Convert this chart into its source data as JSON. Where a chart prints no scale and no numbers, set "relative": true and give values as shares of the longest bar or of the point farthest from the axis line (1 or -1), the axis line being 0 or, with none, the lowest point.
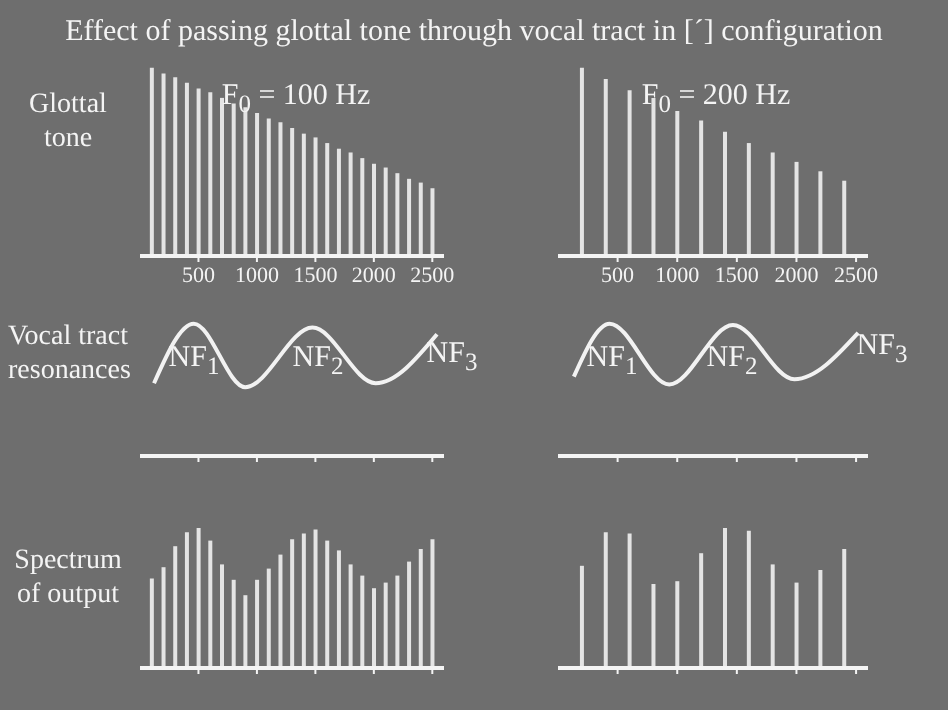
{
  "chart_data": [
    {
      "type": "bar",
      "title": "Effect of passing glottal tone through vocal tract in [´] configuration",
      "ylabel": "Glottal tone",
      "relative": true,
      "annotations": [
        "F$_{0}$ = 100 Hz"
      ],
      "xlim": [
        0,
        2600
      ],
      "xticks": [
        500,
        1000,
        1500,
        2000,
        2500
      ],
      "tick_labels": "x",
      "color": "#e4e4e4",
      "x": [
        100,
        200,
        300,
        400,
        500,
        600,
        700,
        800,
        900,
        1000,
        1100,
        1200,
        1300,
        1400,
        1500,
        1600,
        1700,
        1800,
        1900,
        2000,
        2100,
        2200,
        2300,
        2400,
        2500
      ],
      "values": [
        1,
        0.97,
        0.95,
        0.92,
        0.89,
        0.87,
        0.84,
        0.81,
        0.79,
        0.76,
        0.73,
        0.71,
        0.68,
        0.65,
        0.63,
        0.6,
        0.57,
        0.55,
        0.52,
        0.49,
        0.47,
        0.44,
        0.41,
        0.39,
        0.36
      ]
    },
    {
      "type": "bar",
      "relative": true,
      "annotations": [
        "F$_{0}$ = 200 Hz"
      ],
      "xlim": [
        0,
        2600
      ],
      "xticks": [
        500,
        1000,
        1500,
        2000,
        2500
      ],
      "tick_labels": "x",
      "color": "#e4e4e4",
      "x": [
        200,
        400,
        600,
        800,
        1000,
        1200,
        1400,
        1600,
        1800,
        2000,
        2200,
        2400
      ],
      "values": [
        1,
        0.94,
        0.88,
        0.84,
        0.77,
        0.72,
        0.66,
        0.6,
        0.55,
        0.5,
        0.45,
        0.4
      ]
    },
    {
      "type": "line",
      "ylabel": "Vocal tract resonances",
      "relative": true,
      "annotations": [
        "NF$_{1}$",
        "NF$_{2}$",
        "NF$_{3}$"
      ],
      "xlim": [
        0,
        2600
      ],
      "xticks": [
        500,
        1000,
        1500,
        2000,
        2500
      ],
      "tick_labels": false,
      "color": "#f2f2f2",
      "x": [
        120,
        460,
        900,
        1475,
        2015,
        2540
      ],
      "values": [
        0.55,
        1,
        0.52,
        0.97,
        0.55,
        0.92
      ]
    },
    {
      "type": "line",
      "relative": true,
      "annotations": [
        "NF$_{1}$",
        "NF$_{2}$",
        "NF$_{3}$"
      ],
      "xlim": [
        0,
        2600
      ],
      "xticks": [
        500,
        1000,
        1500,
        2000,
        2500
      ],
      "tick_labels": false,
      "color": "#f2f2f2",
      "x": [
        133,
        433,
        933,
        1467,
        1983,
        2517
      ],
      "values": [
        0.6,
        1,
        0.54,
        0.99,
        0.58,
        0.93
      ]
    },
    {
      "type": "bar",
      "ylabel": "Spectrum of output",
      "relative": true,
      "xlim": [
        0,
        2600
      ],
      "xticks": [
        500,
        1000,
        1500,
        2000,
        2500
      ],
      "tick_labels": false,
      "color": "#e4e4e4",
      "x": [
        100,
        200,
        300,
        400,
        500,
        600,
        700,
        800,
        900,
        1000,
        1100,
        1200,
        1300,
        1400,
        1500,
        1600,
        1700,
        1800,
        1900,
        2000,
        2100,
        2200,
        2300,
        2400,
        2500
      ],
      "values": [
        0.64,
        0.72,
        0.87,
        0.97,
        1,
        0.91,
        0.74,
        0.63,
        0.52,
        0.63,
        0.71,
        0.81,
        0.92,
        0.96,
        0.99,
        0.91,
        0.84,
        0.74,
        0.66,
        0.57,
        0.61,
        0.66,
        0.76,
        0.85,
        0.92
      ]
    },
    {
      "type": "bar",
      "relative": true,
      "xlim": [
        0,
        2600
      ],
      "xticks": [
        500,
        1000,
        1500,
        2000,
        2500
      ],
      "tick_labels": false,
      "color": "#e4e4e4",
      "x": [
        200,
        400,
        600,
        800,
        1000,
        1200,
        1400,
        1600,
        1800,
        2000,
        2200,
        2400
      ],
      "values": [
        0.73,
        0.97,
        0.96,
        0.6,
        0.62,
        0.82,
        1,
        0.98,
        0.74,
        0.61,
        0.7,
        0.85
      ]
    }
  ]
}
